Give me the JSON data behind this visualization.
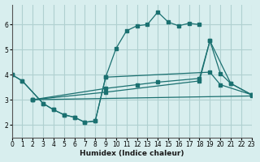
{
  "xlabel": "Humidex (Indice chaleur)",
  "bg_color": "#d8eeee",
  "grid_color": "#b0d0d0",
  "line_color": "#1a7070",
  "xlim": [
    0,
    23
  ],
  "ylim": [
    1.5,
    6.8
  ],
  "xticks": [
    0,
    1,
    2,
    3,
    4,
    5,
    6,
    7,
    8,
    9,
    10,
    11,
    12,
    13,
    14,
    15,
    16,
    17,
    18,
    19,
    20,
    21,
    22,
    23
  ],
  "yticks": [
    2,
    3,
    4,
    5,
    6
  ],
  "curve1_x": [
    0,
    1,
    3,
    4,
    5,
    6,
    7,
    8,
    9,
    19,
    20,
    23
  ],
  "curve1_y": [
    4.0,
    3.75,
    2.85,
    2.6,
    2.4,
    2.3,
    2.1,
    2.15,
    3.9,
    4.1,
    3.6,
    3.2
  ],
  "curve2_x": [
    0,
    1,
    3,
    4,
    5,
    6,
    7,
    8,
    9,
    10,
    11,
    12,
    13,
    14,
    15,
    16,
    17,
    18
  ],
  "curve2_y": [
    4.0,
    3.75,
    2.85,
    2.6,
    2.4,
    2.3,
    2.1,
    2.15,
    3.9,
    5.05,
    5.75,
    5.95,
    6.0,
    6.5,
    6.1,
    5.95,
    6.05,
    6.0
  ],
  "curve3_x": [
    2,
    23
  ],
  "curve3_y": [
    3.0,
    3.15
  ],
  "curve4_x": [
    2,
    9,
    12,
    14,
    18,
    19,
    20,
    21,
    23
  ],
  "curve4_y": [
    3.0,
    3.45,
    3.6,
    3.7,
    3.85,
    5.35,
    4.05,
    3.65,
    3.2
  ],
  "curve5_x": [
    2,
    9,
    18,
    19,
    21,
    23
  ],
  "curve5_y": [
    3.0,
    3.3,
    3.75,
    5.35,
    3.65,
    3.2
  ]
}
